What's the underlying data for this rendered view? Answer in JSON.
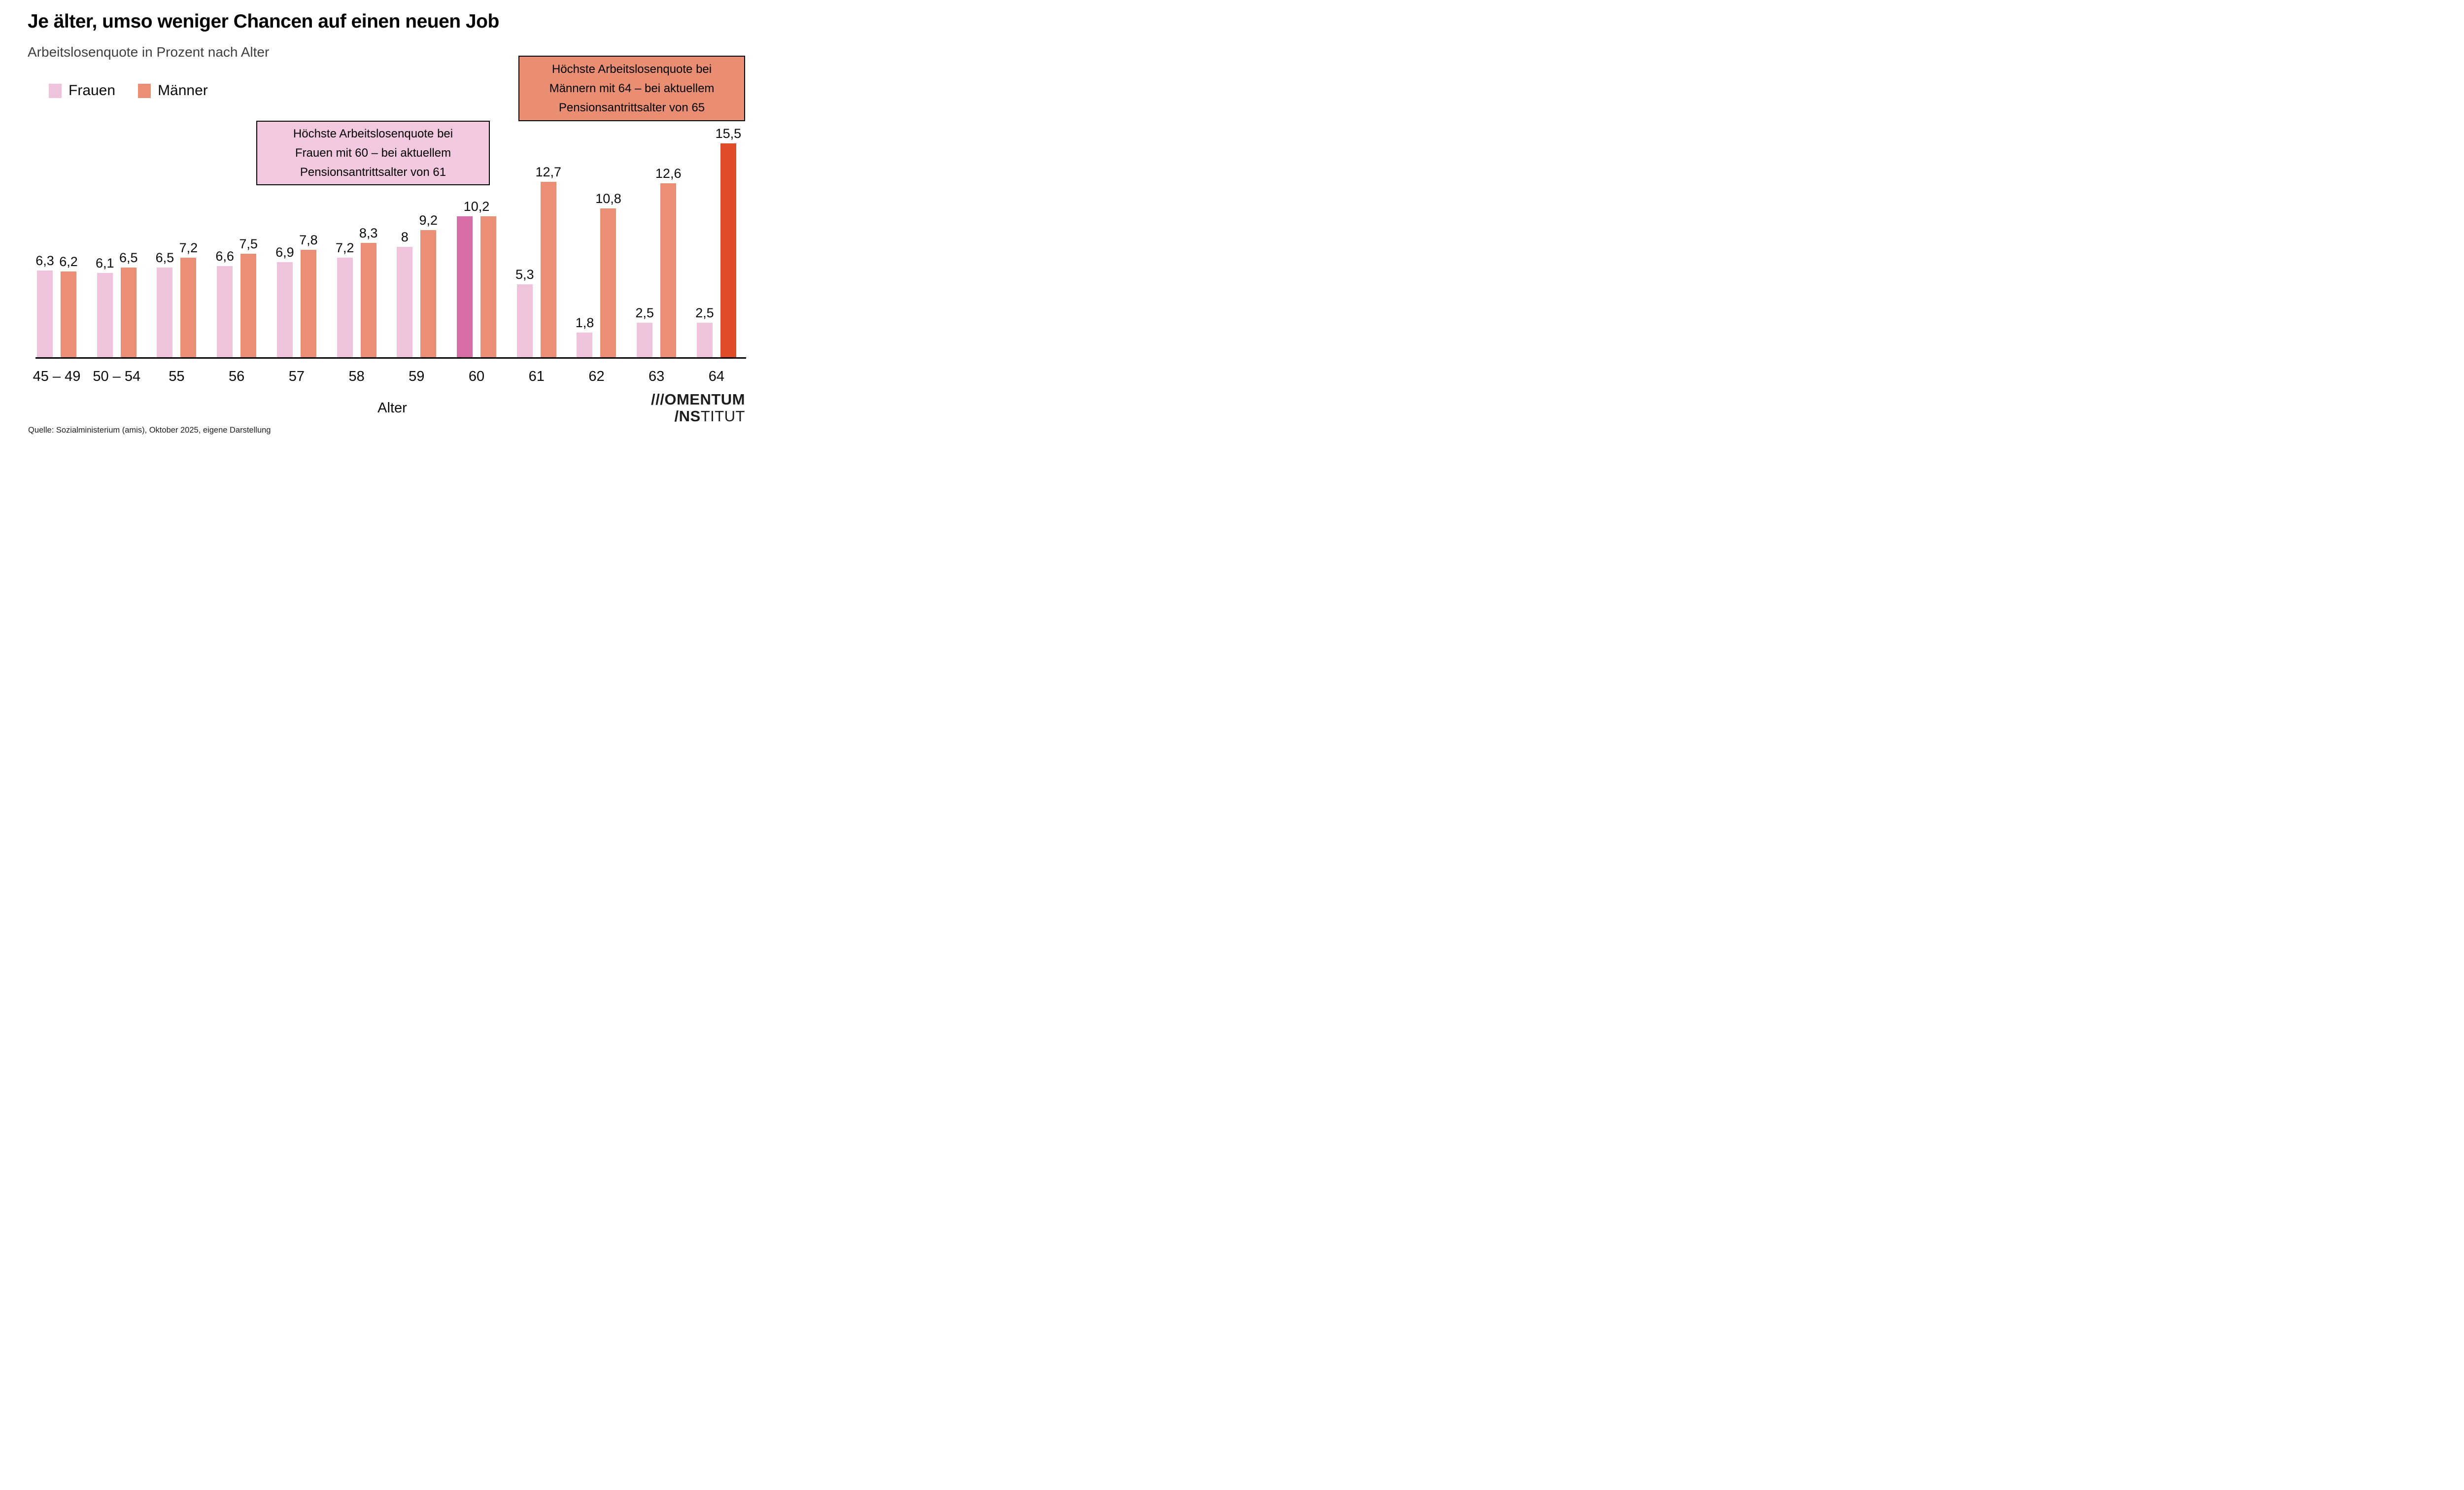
{
  "title": "Je älter, umso weniger Chancen auf einen neuen Job",
  "subtitle": "Arbeitslosenquote in Prozent nach Alter",
  "legend": [
    {
      "label": "Frauen"
    },
    {
      "label": "Männer"
    }
  ],
  "annotations": {
    "women": {
      "lines": [
        "Höchste Arbeitslosenquote bei",
        "Frauen mit 60 – bei aktuellem",
        "Pensionsantrittsalter von 61"
      ]
    },
    "men": {
      "lines": [
        "Höchste Arbeitslosenquote bei",
        "Männern mit 64 – bei aktuellem",
        "Pensionsantrittsalter von 65"
      ]
    }
  },
  "chart_data": {
    "type": "bar",
    "categories": [
      "45 – 49",
      "50 – 54",
      "55",
      "56",
      "57",
      "58",
      "59",
      "60",
      "61",
      "62",
      "63",
      "64"
    ],
    "series": [
      {
        "name": "Frauen",
        "values": [
          6.3,
          6.1,
          6.5,
          6.6,
          6.9,
          7.2,
          8,
          10.2,
          5.3,
          1.8,
          2.5,
          2.5
        ],
        "labels": [
          "6,3",
          "6,1",
          "6,5",
          "6,6",
          "6,9",
          "7,2",
          "8",
          "10,2",
          "5,3",
          "1,8",
          "2,5",
          "2,5"
        ]
      },
      {
        "name": "Männer",
        "values": [
          6.2,
          6.5,
          7.2,
          7.5,
          7.8,
          8.3,
          9.2,
          10.2,
          12.7,
          10.8,
          12.6,
          15.5
        ],
        "labels": [
          "6,2",
          "6,5",
          "7,2",
          "7,5",
          "7,8",
          "8,3",
          "9,2",
          "",
          "12,7",
          "10,8",
          "12,6",
          "15,5"
        ]
      }
    ],
    "highlight": {
      "frauen_category": "60",
      "maenner_category": "64"
    },
    "xlabel": "Alter",
    "ylim": [
      0,
      16.5
    ],
    "grid": false,
    "legend_position": "top-left"
  },
  "colors": {
    "women": "#F0C3DC",
    "women_highlight": "#D76DA6",
    "men": "#EA8E76",
    "men_highlight": "#E04B28",
    "annotation_women_bg": "#F2C8E1",
    "annotation_men_bg": "#E98E73",
    "axis": "#000000"
  },
  "source": "Quelle: Sozialministerium (amis), Oktober 2025, eigene Darstellung",
  "logo": {
    "line1": "///OMENTUM",
    "line2_bold": "/NS",
    "line2_regular": "TITUT"
  }
}
